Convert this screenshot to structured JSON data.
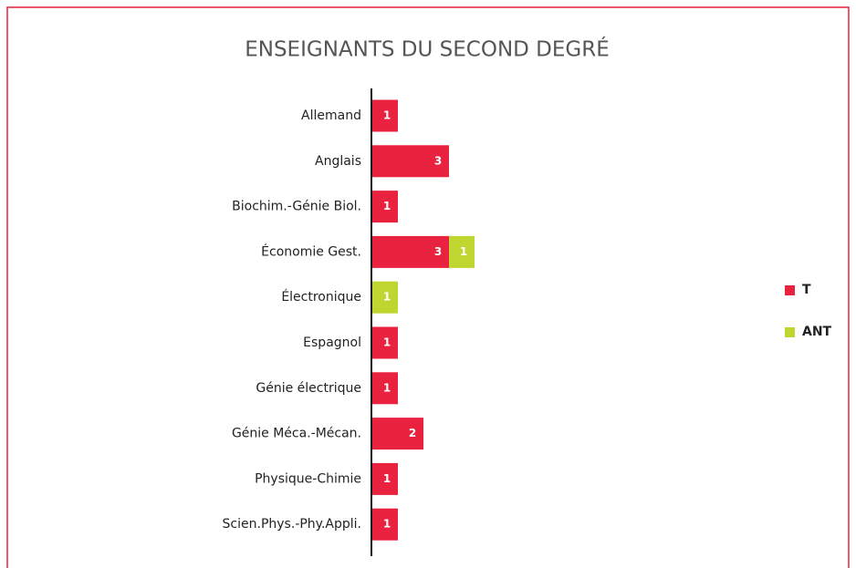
{
  "chart_data": {
    "type": "bar",
    "orientation": "horizontal",
    "stacked": true,
    "title": "ENSEIGNANTS DU SECOND DEGRÉ",
    "categories": [
      "Allemand",
      "Anglais",
      "Biochim.-Génie Biol.",
      "Économie Gest.",
      "Électronique",
      "Espagnol",
      "Génie électrique",
      "Génie Méca.-Mécan.",
      "Physique-Chimie",
      "Scien.Phys.-Phy.Appli."
    ],
    "series": [
      {
        "name": "T",
        "color": "#e8223f",
        "values": [
          1,
          3,
          1,
          3,
          null,
          1,
          1,
          2,
          1,
          1
        ]
      },
      {
        "name": "ANT",
        "color": "#bfd630",
        "values": [
          null,
          null,
          null,
          1,
          1,
          null,
          null,
          null,
          null,
          null
        ]
      }
    ],
    "legend": "right"
  }
}
